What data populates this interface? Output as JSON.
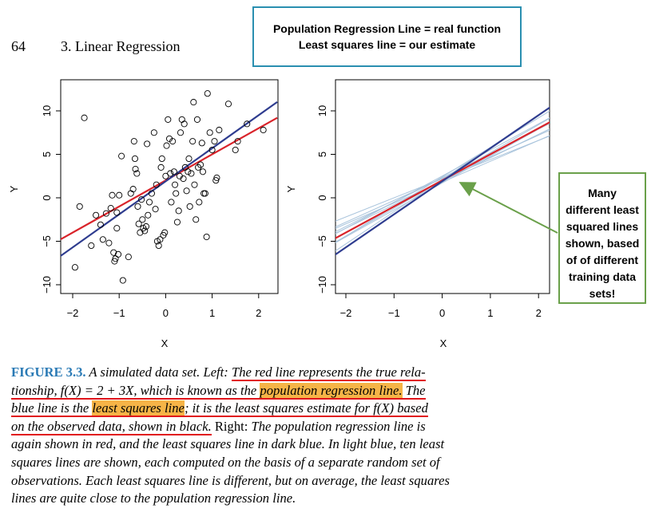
{
  "page": {
    "number": "64",
    "chapter_title": "3. Linear Regression"
  },
  "callout_top": {
    "line1": "Population Regression Line = real function",
    "line2": "Least squares line = our estimate"
  },
  "callout_right": {
    "lines": [
      "Many",
      "different least",
      "squared lines",
      "shown, based",
      "of of different",
      "training data",
      "sets!"
    ]
  },
  "colors": {
    "population_line": "#d9232a",
    "least_squares_line": "#2e3c8f",
    "resampled_lines": "#a9c4dc",
    "callout_top_border": "#2a8fb0",
    "callout_right_border": "#6aa04a",
    "highlight": "#f6b447",
    "underline": "#e0141a",
    "figure_label": "#2a7ab5"
  },
  "chart_data": [
    {
      "type": "scatter",
      "xlabel": "X",
      "ylabel": "Y",
      "xlim": [
        -2.2,
        2.3
      ],
      "ylim": [
        -11,
        12
      ],
      "xticks": [
        "−2",
        "−1",
        "0",
        "1",
        "2"
      ],
      "yticks": [
        "−10",
        "−5",
        "0",
        "5",
        "10"
      ],
      "lines": [
        {
          "role": "population",
          "intercept": 2,
          "slope": 3,
          "color": "#d9232a"
        },
        {
          "role": "least_squares",
          "intercept": 1.9,
          "slope": 3.8,
          "color": "#2e3c8f"
        }
      ],
      "points": [
        [
          -1.95,
          -8.0
        ],
        [
          -1.85,
          -1.0
        ],
        [
          -1.75,
          9.2
        ],
        [
          -1.6,
          -5.5
        ],
        [
          -1.5,
          -2.0
        ],
        [
          -1.4,
          -3.1
        ],
        [
          -1.35,
          -4.8
        ],
        [
          -1.28,
          -1.8
        ],
        [
          -1.22,
          -5.2
        ],
        [
          -1.18,
          -1.2
        ],
        [
          -1.15,
          0.3
        ],
        [
          -1.12,
          -6.3
        ],
        [
          -1.1,
          -7.3
        ],
        [
          -1.08,
          -7.0
        ],
        [
          -1.05,
          -3.5
        ],
        [
          -1.05,
          -1.7
        ],
        [
          -1.02,
          -6.5
        ],
        [
          -1.0,
          0.3
        ],
        [
          -0.95,
          4.8
        ],
        [
          -0.92,
          -9.5
        ],
        [
          -0.8,
          -6.8
        ],
        [
          -0.75,
          0.5
        ],
        [
          -0.7,
          1.0
        ],
        [
          -0.68,
          6.5
        ],
        [
          -0.66,
          4.5
        ],
        [
          -0.65,
          3.3
        ],
        [
          -0.62,
          2.8
        ],
        [
          -0.6,
          -1.0
        ],
        [
          -0.58,
          -3.0
        ],
        [
          -0.55,
          -4.0
        ],
        [
          -0.52,
          -0.2
        ],
        [
          -0.5,
          -2.5
        ],
        [
          -0.48,
          -3.5
        ],
        [
          -0.45,
          -3.8
        ],
        [
          -0.42,
          -3.3
        ],
        [
          -0.4,
          6.2
        ],
        [
          -0.38,
          -2.0
        ],
        [
          -0.35,
          -0.5
        ],
        [
          -0.3,
          0.5
        ],
        [
          -0.25,
          7.5
        ],
        [
          -0.22,
          -1.3
        ],
        [
          -0.2,
          1.5
        ],
        [
          -0.18,
          -5.0
        ],
        [
          -0.15,
          -5.5
        ],
        [
          -0.12,
          -4.8
        ],
        [
          -0.1,
          3.5
        ],
        [
          -0.08,
          4.5
        ],
        [
          -0.05,
          -4.3
        ],
        [
          -0.02,
          -4.0
        ],
        [
          0.0,
          2.5
        ],
        [
          0.02,
          6.0
        ],
        [
          0.05,
          9.0
        ],
        [
          0.08,
          6.8
        ],
        [
          0.1,
          2.8
        ],
        [
          0.12,
          -0.5
        ],
        [
          0.15,
          6.5
        ],
        [
          0.18,
          3.0
        ],
        [
          0.2,
          1.5
        ],
        [
          0.22,
          0.5
        ],
        [
          0.25,
          -2.8
        ],
        [
          0.28,
          -1.5
        ],
        [
          0.3,
          2.5
        ],
        [
          0.32,
          7.5
        ],
        [
          0.35,
          9.0
        ],
        [
          0.38,
          2.2
        ],
        [
          0.4,
          8.5
        ],
        [
          0.42,
          3.5
        ],
        [
          0.45,
          0.8
        ],
        [
          0.48,
          3.0
        ],
        [
          0.5,
          4.5
        ],
        [
          0.52,
          -1.0
        ],
        [
          0.55,
          2.8
        ],
        [
          0.58,
          6.5
        ],
        [
          0.6,
          11.0
        ],
        [
          0.62,
          1.5
        ],
        [
          0.65,
          -2.5
        ],
        [
          0.68,
          9.0
        ],
        [
          0.7,
          3.5
        ],
        [
          0.72,
          -0.5
        ],
        [
          0.75,
          3.8
        ],
        [
          0.78,
          6.3
        ],
        [
          0.8,
          3.0
        ],
        [
          0.82,
          0.5
        ],
        [
          0.85,
          0.5
        ],
        [
          0.88,
          -4.5
        ],
        [
          0.9,
          12.0
        ],
        [
          0.95,
          7.5
        ],
        [
          1.0,
          5.5
        ],
        [
          1.05,
          6.5
        ],
        [
          1.08,
          2.0
        ],
        [
          1.1,
          2.3
        ],
        [
          1.15,
          7.8
        ],
        [
          1.35,
          10.8
        ],
        [
          1.5,
          5.5
        ],
        [
          1.55,
          6.5
        ],
        [
          1.75,
          8.5
        ],
        [
          2.1,
          7.8
        ]
      ]
    },
    {
      "type": "line",
      "xlabel": "X",
      "ylabel": "Y",
      "xlim": [
        -2.2,
        2.3
      ],
      "ylim": [
        -11,
        12
      ],
      "xticks": [
        "−2",
        "−1",
        "0",
        "1",
        "2"
      ],
      "yticks": [
        "−10",
        "−5",
        "0",
        "5",
        "10"
      ],
      "lines": [
        {
          "role": "resampled",
          "intercept": 2.2,
          "slope": 2.5,
          "color": "#a9c4dc"
        },
        {
          "role": "resampled",
          "intercept": 2.3,
          "slope": 2.8,
          "color": "#a9c4dc"
        },
        {
          "role": "resampled",
          "intercept": 2.0,
          "slope": 3.2,
          "color": "#a9c4dc"
        },
        {
          "role": "resampled",
          "intercept": 2.4,
          "slope": 3.4,
          "color": "#a9c4dc"
        },
        {
          "role": "resampled",
          "intercept": 1.9,
          "slope": 2.7,
          "color": "#a9c4dc"
        },
        {
          "role": "resampled",
          "intercept": 2.1,
          "slope": 3.7,
          "color": "#a9c4dc"
        },
        {
          "role": "resampled",
          "intercept": 1.8,
          "slope": 2.4,
          "color": "#a9c4dc"
        },
        {
          "role": "resampled",
          "intercept": 2.5,
          "slope": 3.0,
          "color": "#a9c4dc"
        },
        {
          "role": "resampled",
          "intercept": 2.2,
          "slope": 2.2,
          "color": "#a9c4dc"
        },
        {
          "role": "resampled",
          "intercept": 1.7,
          "slope": 3.1,
          "color": "#a9c4dc"
        },
        {
          "role": "population",
          "intercept": 2,
          "slope": 3,
          "color": "#d9232a"
        },
        {
          "role": "least_squares",
          "intercept": 1.9,
          "slope": 3.8,
          "color": "#2e3c8f"
        }
      ]
    }
  ],
  "caption": {
    "label": "FIGURE 3.3.",
    "l1_a": " A simulated data set. Left: ",
    "l1_b": "The red line represents the true rela-",
    "l2_a": "tionship, ",
    "l2_b": "f(X) = 2 + 3X",
    "l2_c": ", which is known as the ",
    "l2_d": "population regression line.",
    "l2_e": " The",
    "l3_a": "blue line is the ",
    "l3_b": "least squares line",
    "l3_c": "; it is the least squares estimate for ",
    "l3_d": "f(X)",
    "l3_e": " based",
    "l4_a": "on the observed data, shown in black.",
    "l4_b": " Right:",
    "l4_c": " The population regression line is",
    "l5": "again shown in red, and the least squares line in dark blue. In light blue, ten least",
    "l6": "squares lines are shown, each computed on the basis of a separate random set of",
    "l7": "observations. Each least squares line is different, but on average, the least squares",
    "l8": "lines are quite close to the population regression line."
  }
}
